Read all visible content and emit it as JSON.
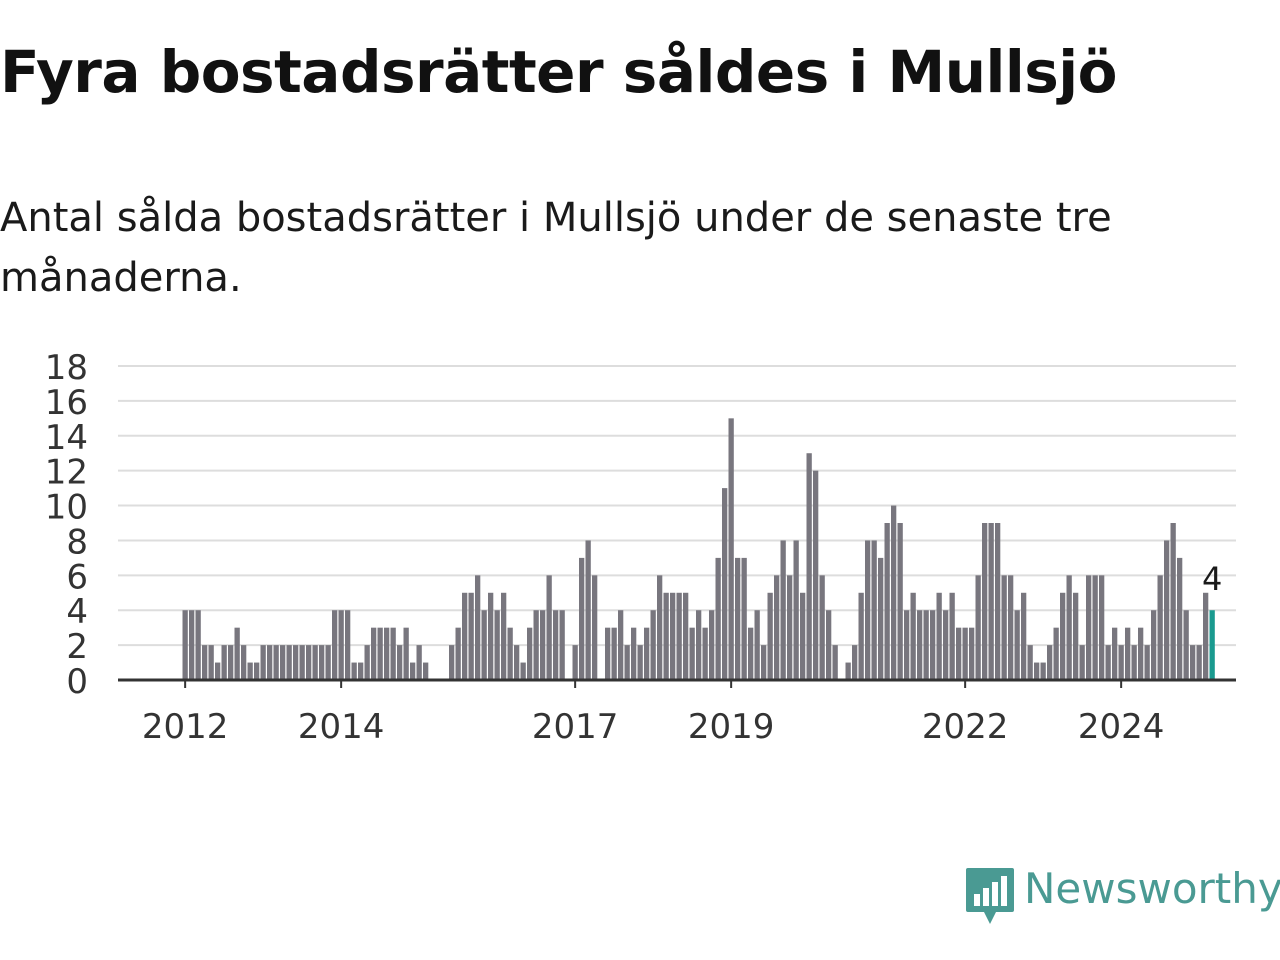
{
  "title": "Fyra bostadsrätter såldes i Mullsjö",
  "subtitle": "Antal sålda bostadsrätter i Mullsjö under de senaste tre månaderna.",
  "brand": {
    "name": "Newsworthy",
    "icon": "newsworthy-logo-icon"
  },
  "colors": {
    "bar": "#78767e",
    "highlight": "#1a9a8f",
    "grid": "#dddddd",
    "axis": "#333333",
    "brand": "#4a9a93"
  },
  "chart_data": {
    "type": "bar",
    "x_ticks": [
      "2012",
      "2014",
      "2017",
      "2019",
      "2022",
      "2024"
    ],
    "y_ticks": [
      0,
      2,
      4,
      6,
      8,
      10,
      12,
      14,
      16,
      18
    ],
    "ylim": [
      0,
      18
    ],
    "grid": true,
    "highlight_label": "4",
    "start": "2011-05",
    "end": "2024-12",
    "values": [
      0,
      0,
      0,
      0,
      0,
      0,
      0,
      0,
      4,
      4,
      4,
      2,
      2,
      1,
      2,
      2,
      3,
      2,
      1,
      1,
      2,
      2,
      2,
      2,
      2,
      2,
      2,
      2,
      2,
      2,
      2,
      4,
      4,
      4,
      1,
      1,
      2,
      3,
      3,
      3,
      3,
      2,
      3,
      1,
      2,
      1,
      0,
      0,
      0,
      2,
      3,
      5,
      5,
      6,
      4,
      5,
      4,
      5,
      3,
      2,
      1,
      3,
      4,
      4,
      6,
      4,
      4,
      0,
      2,
      7,
      8,
      6,
      0,
      3,
      3,
      4,
      2,
      3,
      2,
      3,
      4,
      6,
      5,
      5,
      5,
      5,
      3,
      4,
      3,
      4,
      7,
      11,
      15,
      7,
      7,
      3,
      4,
      2,
      5,
      6,
      8,
      6,
      8,
      5,
      13,
      12,
      6,
      4,
      2,
      0,
      1,
      2,
      5,
      8,
      8,
      7,
      9,
      10,
      9,
      4,
      5,
      4,
      4,
      4,
      5,
      4,
      5,
      3,
      3,
      3,
      6,
      9,
      9,
      9,
      6,
      6,
      4,
      5,
      2,
      1,
      1,
      2,
      3,
      5,
      6,
      5,
      2,
      6,
      6,
      6,
      2,
      3,
      2,
      3,
      2,
      3,
      2,
      4,
      6,
      8,
      9,
      7,
      4,
      2,
      2,
      5,
      4
    ]
  }
}
